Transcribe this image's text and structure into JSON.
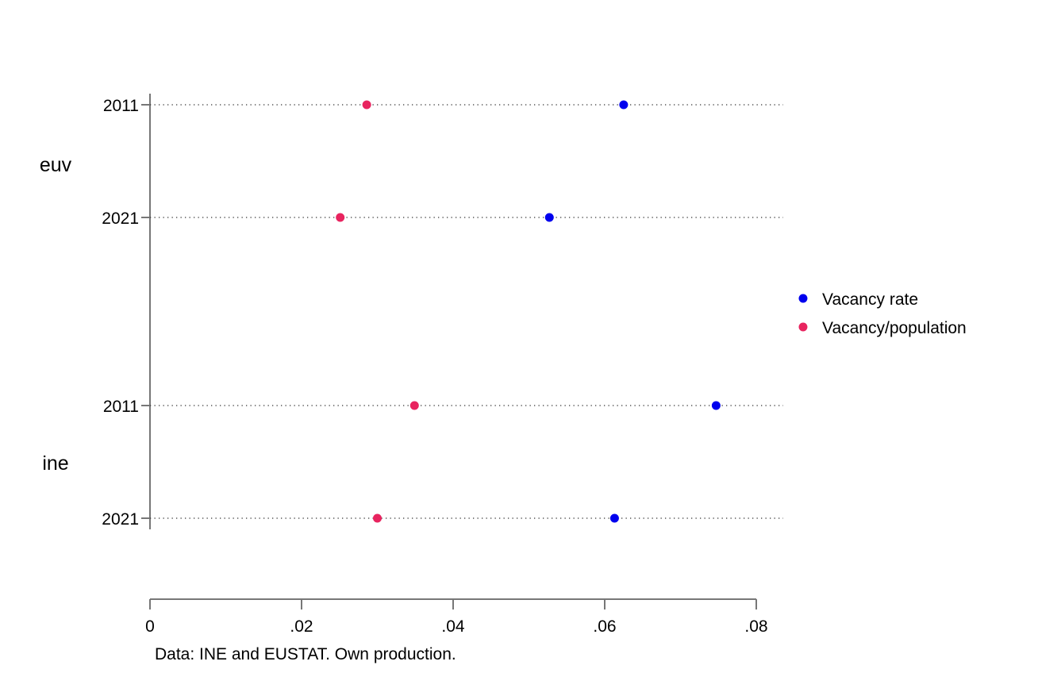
{
  "chart_data": {
    "type": "scatter",
    "title": "",
    "xlabel": "",
    "ylabel": "",
    "xlim": [
      0,
      0.08
    ],
    "x_ticks": [
      {
        "value": 0,
        "label": "0"
      },
      {
        "value": 0.02,
        "label": ".02"
      },
      {
        "value": 0.04,
        "label": ".04"
      },
      {
        "value": 0.06,
        "label": ".06"
      },
      {
        "value": 0.08,
        "label": ".08"
      }
    ],
    "groups": [
      {
        "label": "euv",
        "rows": [
          {
            "label": "2011"
          },
          {
            "label": "2021"
          }
        ]
      },
      {
        "label": "ine",
        "rows": [
          {
            "label": "2011"
          },
          {
            "label": "2021"
          }
        ]
      }
    ],
    "series": [
      {
        "name": "Vacancy rate",
        "color": "#0000ee",
        "values": [
          0.0625,
          0.0527,
          0.0747,
          0.0613
        ]
      },
      {
        "name": "Vacancy/population",
        "color": "#e8245f",
        "values": [
          0.0286,
          0.0251,
          0.0349,
          0.03
        ]
      }
    ],
    "legend_position": "right",
    "grid": "dotted horizontal row lines",
    "note": "Data: INE and EUSTAT. Own production."
  }
}
